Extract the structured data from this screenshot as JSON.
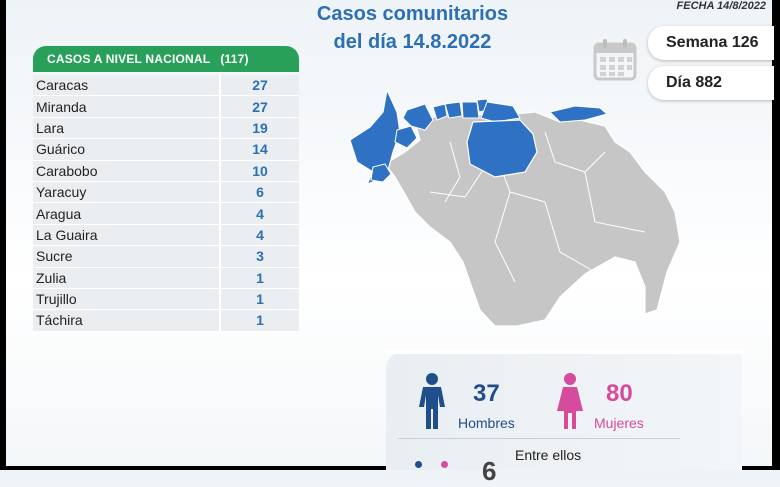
{
  "header": {
    "title_line1": "Casos comunitarios",
    "title_line2": "del día 14.8.2022",
    "fecha": "FECHA 14/8/2022"
  },
  "table": {
    "header_label": "CASOS A NIVEL NACIONAL",
    "header_total": "(117)",
    "rows": [
      {
        "name": "Caracas",
        "value": "27"
      },
      {
        "name": "Miranda",
        "value": "27"
      },
      {
        "name": "Lara",
        "value": "19"
      },
      {
        "name": "Guárico",
        "value": "14"
      },
      {
        "name": "Carabobo",
        "value": "10"
      },
      {
        "name": "Yaracuy",
        "value": "6"
      },
      {
        "name": "Aragua",
        "value": "4"
      },
      {
        "name": "La Guaira",
        "value": "4"
      },
      {
        "name": "Sucre",
        "value": "3"
      },
      {
        "name": "Zulia",
        "value": "1"
      },
      {
        "name": "Trujillo",
        "value": "1"
      },
      {
        "name": "Táchira",
        "value": "1"
      }
    ]
  },
  "info": {
    "semana": "Semana 126",
    "dia": "Día 882"
  },
  "stats": {
    "hombres_count": "37",
    "hombres_label": "Hombres",
    "mujeres_count": "80",
    "mujeres_label": "Mujeres",
    "entre_ellos": "Entre ellos",
    "partial_value": "6"
  },
  "colors": {
    "title_blue": "#2c6fb4",
    "header_green": "#28a05a",
    "men_blue": "#1f4e8c",
    "women_pink": "#d64b9b",
    "map_highlight": "#2f72c4",
    "map_base": "#c6c6c6"
  },
  "icons": [
    "calendar-icon",
    "man-icon",
    "woman-icon"
  ]
}
